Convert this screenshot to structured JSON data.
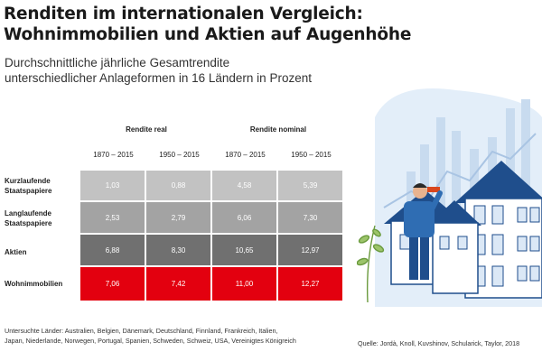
{
  "title_line1": "Renditen im internationalen Vergleich:",
  "title_line2": "Wohnimmobilien und Aktien auf Augenhöhe",
  "subtitle_line1": "Durchschnittliche jährliche Gesamtrendite",
  "subtitle_line2": "unterschiedlicher Anlageformen in 16 Ländern in Prozent",
  "column_groups": [
    "Rendite real",
    "Rendite nominal"
  ],
  "periods": [
    "1870 – 2015",
    "1950 – 2015",
    "1870 – 2015",
    "1950 – 2015"
  ],
  "colors": {
    "row1": "#c2c2c2",
    "row2": "#a3a3a3",
    "row3": "#707070",
    "row4": "#e3000f",
    "illustration_blue": "#1f4e8c",
    "illustration_light": "#dbe8f6"
  },
  "chart_data": {
    "type": "table",
    "title": "Renditen im internationalen Vergleich: Wohnimmobilien und Aktien auf Augenhöhe",
    "subtitle": "Durchschnittliche jährliche Gesamtrendite unterschiedlicher Anlageformen in 16 Ländern in Prozent",
    "column_groups": [
      "Rendite real",
      "Rendite nominal"
    ],
    "columns": [
      "1870 – 2015",
      "1950 – 2015",
      "1870 – 2015",
      "1950 – 2015"
    ],
    "rows": [
      {
        "label_line1": "Kurzlaufende",
        "label_line2": "Staatspapiere",
        "values": [
          "1,03",
          "0,88",
          "4,58",
          "5,39"
        ]
      },
      {
        "label_line1": "Langlaufende",
        "label_line2": "Staatspapiere",
        "values": [
          "2,53",
          "2,79",
          "6,06",
          "7,30"
        ]
      },
      {
        "label_line1": "Aktien",
        "label_line2": "",
        "values": [
          "6,88",
          "8,30",
          "10,65",
          "12,97"
        ]
      },
      {
        "label_line1": "Wohnimmobilien",
        "label_line2": "",
        "values": [
          "7,06",
          "7,42",
          "11,00",
          "12,27"
        ]
      }
    ]
  },
  "footnote_line1": "Untersuchte Länder: Australien, Belgien, Dänemark, Deutschland, Finnland, Frankreich, Italien,",
  "footnote_line2": "Japan, Niederlande, Norwegen, Portugal, Spanien, Schweden, Schweiz, USA, Vereinigtes Königreich",
  "source": "Quelle: Jordà, Knoll, Kuvshinov, Schularick, Taylor, 2018"
}
